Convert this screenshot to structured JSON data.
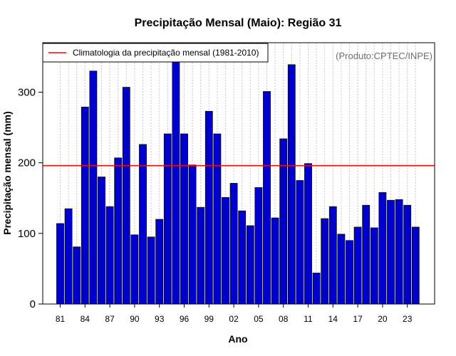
{
  "chart_data": {
    "type": "bar",
    "title": "Precipitação Mensal (Maio): Região 31",
    "xlabel": "Ano",
    "ylabel": "Precipitação mensal (mm)",
    "source_note": "(Produto:CPTEC/INPE)",
    "ylim": [
      0,
      370
    ],
    "yticks": [
      0,
      100,
      200,
      300
    ],
    "grid": "vertical dotted",
    "legend": {
      "position": "top-left",
      "label": "Climatologia da precipitação mensal (1981-2010)"
    },
    "climatology": 196,
    "categories": [
      "81",
      "82",
      "83",
      "84",
      "85",
      "86",
      "87",
      "88",
      "89",
      "90",
      "91",
      "92",
      "93",
      "94",
      "95",
      "96",
      "97",
      "98",
      "99",
      "00",
      "01",
      "02",
      "03",
      "04",
      "05",
      "06",
      "07",
      "08",
      "09",
      "10",
      "11",
      "12",
      "13",
      "14",
      "15",
      "16",
      "17",
      "18",
      "19",
      "20",
      "21",
      "22",
      "23",
      "24"
    ],
    "xtick_labels": [
      "81",
      "84",
      "87",
      "90",
      "93",
      "96",
      "99",
      "02",
      "05",
      "08",
      "11",
      "14",
      "17",
      "20",
      "23"
    ],
    "values": [
      114,
      135,
      81,
      279,
      330,
      180,
      138,
      207,
      307,
      98,
      226,
      95,
      120,
      241,
      345,
      241,
      197,
      137,
      273,
      241,
      151,
      171,
      132,
      111,
      165,
      301,
      122,
      234,
      339,
      175,
      199,
      44,
      121,
      138,
      99,
      90,
      109,
      140,
      108,
      158,
      147,
      148,
      140,
      109
    ],
    "colors": {
      "bar": "#0000cd",
      "climatology_line": "#ff0000",
      "grid": "#c8c8c8"
    }
  }
}
